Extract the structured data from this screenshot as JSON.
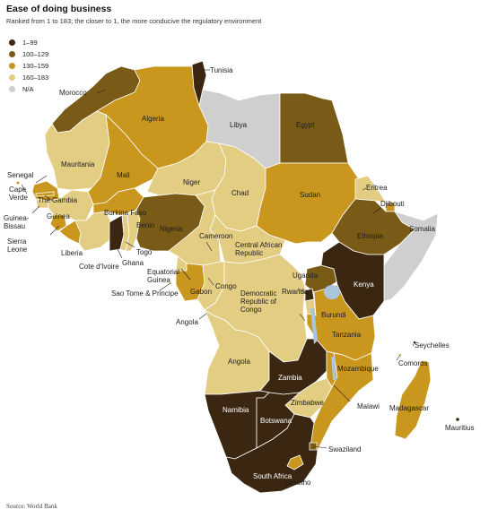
{
  "title": "Ease of doing business",
  "subtitle": "Ranked from 1 to 183; the closer to 1, the more conducive the regulatory environment",
  "source": "Source: World Bank",
  "colors": {
    "r1_99": "#3b2711",
    "r100_129": "#7a5a17",
    "r130_159": "#c9961e",
    "r160_183": "#e3cd82",
    "na": "#cfcfcf",
    "water": "#a9c5dc"
  },
  "legend": [
    {
      "label": "1–99",
      "color": "#3b2711"
    },
    {
      "label": "100–129",
      "color": "#7a5a17"
    },
    {
      "label": "130–159",
      "color": "#c9961e"
    },
    {
      "label": "160–183",
      "color": "#e3cd82"
    },
    {
      "label": "N/A",
      "color": "#cfcfcf"
    }
  ],
  "countries": {
    "tunisia": {
      "name": "Tunisia",
      "band": "1–99"
    },
    "morocco": {
      "name": "Morocco",
      "band": "100–129"
    },
    "algeria": {
      "name": "Algeria",
      "band": "130–159"
    },
    "libya": {
      "name": "Libya",
      "band": "N/A"
    },
    "egypt": {
      "name": "Egypt",
      "band": "100–129"
    },
    "mauritania": {
      "name": "Mauritania",
      "band": "160–183"
    },
    "mali": {
      "name": "Mali",
      "band": "130–159"
    },
    "niger": {
      "name": "Niger",
      "band": "160–183"
    },
    "chad": {
      "name": "Chad",
      "band": "160–183"
    },
    "sudan": {
      "name": "Sudan",
      "band": "130–159"
    },
    "eritrea": {
      "name": "Eritrea",
      "band": "160–183"
    },
    "djibouti": {
      "name": "Djibouti",
      "band": "130–159"
    },
    "somalia": {
      "name": "Somalia",
      "band": "N/A"
    },
    "ethiopia": {
      "name": "Ethiopia",
      "band": "100–129"
    },
    "senegal": {
      "name": "Senegal",
      "band": "130–159"
    },
    "cape_verde": {
      "name": "Cape\nVerde",
      "band": "130–159"
    },
    "the_gambia": {
      "name": "The Gambia",
      "band": "130–159"
    },
    "guinea_bissau": {
      "name": "Guinea-\nBissau",
      "band": "160–183"
    },
    "guinea": {
      "name": "Guinea",
      "band": "160–183"
    },
    "sierra_leone": {
      "name": "Sierra\nLeone",
      "band": "130–159"
    },
    "liberia": {
      "name": "Liberia",
      "band": "130–159"
    },
    "cote_divoire": {
      "name": "Cote d'Ivoire",
      "band": "160–183"
    },
    "burkina_faso": {
      "name": "Burkina Faso",
      "band": "130–159"
    },
    "ghana": {
      "name": "Ghana",
      "band": "1–99"
    },
    "togo": {
      "name": "Togo",
      "band": "160–183"
    },
    "benin": {
      "name": "Benin",
      "band": "160–183"
    },
    "nigeria": {
      "name": "Nigeria",
      "band": "100–129"
    },
    "cameroon": {
      "name": "Cameroon",
      "band": "160–183"
    },
    "car": {
      "name": "Central African\nRepublic",
      "band": "160–183"
    },
    "equatorial_guinea": {
      "name": "Equatorial\nGuinea",
      "band": "160–183"
    },
    "sao_tome": {
      "name": "Sao Tome & Principe",
      "band": "160–183"
    },
    "gabon": {
      "name": "Gabon",
      "band": "130–159"
    },
    "congo": {
      "name": "Congo",
      "band": "160–183"
    },
    "drc": {
      "name": "Democratic\nRepublic of\nCongo",
      "band": "160–183"
    },
    "uganda": {
      "name": "Uganda",
      "band": "100–129"
    },
    "kenya": {
      "name": "Kenya",
      "band": "1–99"
    },
    "rwanda": {
      "name": "Rwanda",
      "band": "1–99"
    },
    "burundi": {
      "name": "Burundi",
      "band": "160–183"
    },
    "tanzania": {
      "name": "Tanzania",
      "band": "130–159"
    },
    "seychelles": {
      "name": "Seychelles",
      "band": "1–99"
    },
    "comoros": {
      "name": "Comoros",
      "band": "160–183"
    },
    "angola": {
      "name": "Angola",
      "band": "160–183"
    },
    "zambia": {
      "name": "Zambia",
      "band": "1–99"
    },
    "malawi": {
      "name": "Malawi",
      "band": "130–159"
    },
    "mozambique": {
      "name": "Mozambique",
      "band": "130–159"
    },
    "madagascar": {
      "name": "Madagascar",
      "band": "130–159"
    },
    "mauritius": {
      "name": "Mauritius",
      "band": "1–99"
    },
    "zimbabwe": {
      "name": "Zimbabwe",
      "band": "160–183"
    },
    "namibia": {
      "name": "Namibia",
      "band": "1–99"
    },
    "botswana": {
      "name": "Botswana",
      "band": "1–99"
    },
    "swaziland": {
      "name": "Swaziland",
      "band": "100–129"
    },
    "south_africa": {
      "name": "South Africa",
      "band": "1–99"
    },
    "lesotho": {
      "name": "Lesotho",
      "band": "130–159"
    }
  }
}
